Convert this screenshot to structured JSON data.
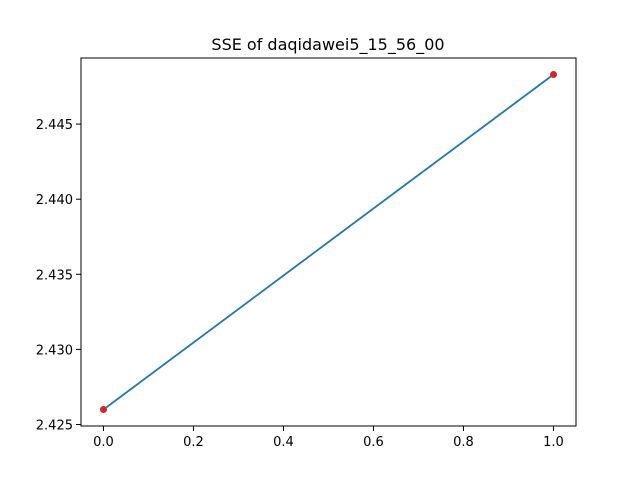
{
  "chart_data": {
    "type": "line",
    "title": "SSE of daqidawei5_15_56_00",
    "xlabel": "",
    "ylabel": "",
    "x": [
      0.0,
      1.0
    ],
    "series": [
      {
        "name": "SSE",
        "values": [
          2.426,
          2.4483
        ],
        "color": "#1f77b4",
        "marker_color": "#d62728"
      }
    ],
    "xlim": [
      -0.05,
      1.05
    ],
    "ylim": [
      2.4249,
      2.4494
    ],
    "xticks": [
      0.0,
      0.2,
      0.4,
      0.6,
      0.8,
      1.0
    ],
    "xtick_labels": [
      "0.0",
      "0.2",
      "0.4",
      "0.6",
      "0.8",
      "1.0"
    ],
    "yticks": [
      2.425,
      2.43,
      2.435,
      2.44,
      2.445
    ],
    "ytick_labels": [
      "2.425",
      "2.430",
      "2.435",
      "2.440",
      "2.445"
    ],
    "grid": false,
    "legend": "none"
  }
}
